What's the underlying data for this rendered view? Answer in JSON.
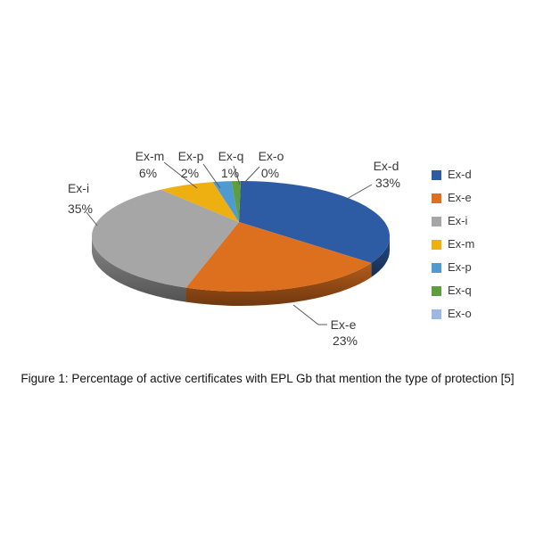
{
  "caption": "Figure 1: Percentage of active certificates with EPL Gb that mention the type of protection [5]",
  "chart_data": {
    "type": "pie",
    "style": "3d",
    "title": "",
    "unit": "%",
    "direction": "clockwise",
    "start_angle_deg": 0,
    "legend_position": "right",
    "categories": [
      "Ex-d",
      "Ex-e",
      "Ex-i",
      "Ex-m",
      "Ex-p",
      "Ex-q",
      "Ex-o"
    ],
    "values": [
      33,
      23,
      35,
      6,
      2,
      1,
      0
    ],
    "value_labels": [
      "33%",
      "23%",
      "35%",
      "6%",
      "2%",
      "1%",
      "0%"
    ],
    "colors": [
      "#2e5ca4",
      "#dd701e",
      "#a6a6a6",
      "#eeb011",
      "#4f9bd1",
      "#5f9e3c",
      "#9db7e3"
    ],
    "legend_entries": [
      "Ex-d",
      "Ex-e",
      "Ex-i",
      "Ex-m",
      "Ex-p",
      "Ex-q",
      "Ex-o"
    ]
  }
}
